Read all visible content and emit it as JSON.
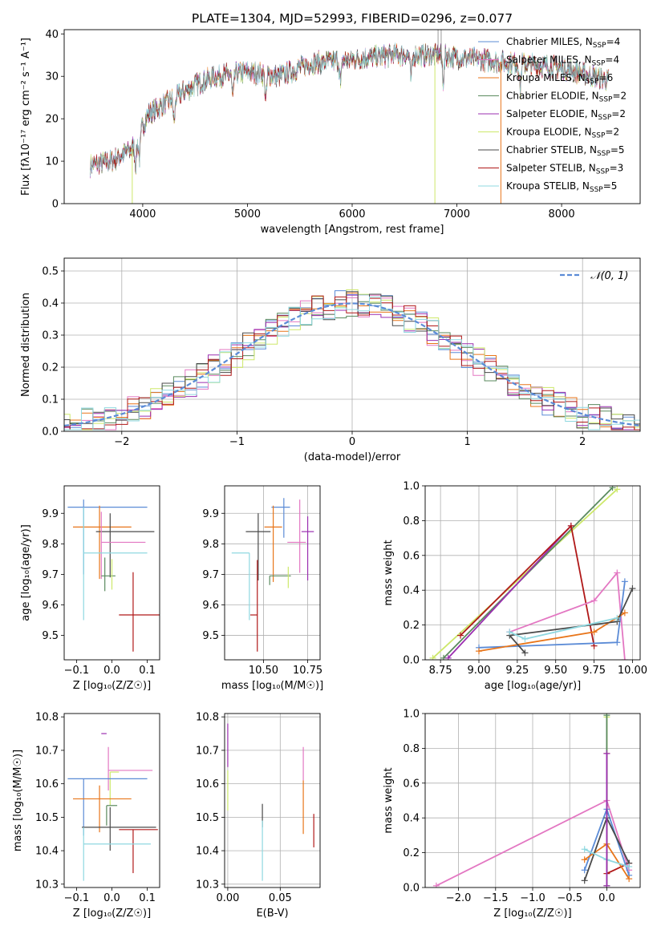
{
  "colors": {
    "chabrier_miles": "#5b8bd6",
    "salpeter_miles": "#e377c2",
    "kroupa_miles": "#e8751a",
    "chabrier_elodie": "#5a8a5e",
    "salpeter_elodie": "#9b2fb0",
    "kroupa_elodie": "#cde86a",
    "chabrier_stelib": "#4a4a4a",
    "salpeter_stelib": "#b01818",
    "kroupa_stelib": "#8fd8e0",
    "normal_curve": "#5b8bd6"
  },
  "chart_data": [
    {
      "id": "spectrum",
      "type": "line",
      "title": "PLATE=1304, MJD=52993, FIBERID=0296, z=0.077",
      "xlabel": "wavelength [Angstrom, rest frame]",
      "ylabel": "Flux [fλ10⁻¹⁷ erg cm⁻² s⁻¹ A⁻¹]",
      "xlim": [
        3250,
        8750
      ],
      "ylim": [
        0,
        41
      ],
      "xticks": [
        4000,
        5000,
        6000,
        7000,
        8000
      ],
      "yticks": [
        0,
        10,
        20,
        30,
        40
      ],
      "grid": false,
      "legend_placement": "top-right",
      "continuum": {
        "x": [
          3500,
          3700,
          3900,
          4050,
          4300,
          4500,
          4700,
          5000,
          5300,
          5600,
          6000,
          6400,
          6800,
          7200,
          7600,
          8000,
          8300,
          8450
        ],
        "y": [
          9,
          10,
          13,
          21,
          25,
          28,
          30,
          31,
          30,
          33,
          34,
          35,
          35,
          34,
          33,
          32,
          30,
          29
        ]
      },
      "absorption_lines": [
        3934,
        3969,
        4300,
        4861,
        5175,
        5890,
        6563,
        6870,
        7605
      ],
      "legend": [
        {
          "label": "Chabrier MILES, N",
          "sub": "SSP",
          "suffix": "=4",
          "color_key": "chabrier_miles"
        },
        {
          "label": "Salpeter MILES, N",
          "sub": "SSP",
          "suffix": "=4",
          "color_key": "salpeter_miles"
        },
        {
          "label": "Kroupa MILES, N",
          "sub": "SSP",
          "suffix": "=6",
          "color_key": "kroupa_miles"
        },
        {
          "label": "Chabrier ELODIE, N",
          "sub": "SSP",
          "suffix": "=2",
          "color_key": "chabrier_elodie"
        },
        {
          "label": "Salpeter ELODIE, N",
          "sub": "SSP",
          "suffix": "=2",
          "color_key": "salpeter_elodie"
        },
        {
          "label": "Kroupa ELODIE, N",
          "sub": "SSP",
          "suffix": "=2",
          "color_key": "kroupa_elodie"
        },
        {
          "label": "Chabrier STELIB, N",
          "sub": "SSP",
          "suffix": "=5",
          "color_key": "chabrier_stelib"
        },
        {
          "label": "Salpeter STELIB, N",
          "sub": "SSP",
          "suffix": "=3",
          "color_key": "salpeter_stelib"
        },
        {
          "label": "Kroupa STELIB, N",
          "sub": "SSP",
          "suffix": "=5",
          "color_key": "kroupa_stelib"
        }
      ],
      "vertical_drops": [
        {
          "x": 3900,
          "color_key": "kroupa_elodie"
        },
        {
          "x": 6790,
          "color_key": "kroupa_elodie"
        },
        {
          "x": 7420,
          "color_key": "kroupa_miles"
        }
      ]
    },
    {
      "id": "residuals",
      "type": "step",
      "xlabel": "(data-model)/error",
      "ylabel": "Normed distribution",
      "xlim": [
        -2.5,
        2.5
      ],
      "ylim": [
        0,
        0.54
      ],
      "xticks": [
        -2,
        -1,
        0,
        1,
        2
      ],
      "yticks": [
        0.0,
        0.1,
        0.2,
        0.3,
        0.4,
        0.5
      ],
      "grid": true,
      "bin_width": 0.1,
      "legend": [
        {
          "label": "𝒩(0, 1)",
          "style": "dashed",
          "color_key": "normal_curve"
        }
      ],
      "legend_placement": "top-right"
    },
    {
      "id": "age_vs_Z",
      "type": "errorbar",
      "xlabel": "Z [log₁₀(Z/Z☉)]",
      "ylabel": "age  [log₁₀(age/yr)]",
      "xlim": [
        -0.135,
        0.135
      ],
      "ylim": [
        9.42,
        9.99
      ],
      "xticks": [
        -0.1,
        0.0,
        0.1
      ],
      "yticks": [
        9.5,
        9.6,
        9.7,
        9.8,
        9.9
      ],
      "grid": false,
      "points": [
        {
          "color_key": "chabrier_miles",
          "x": -0.08,
          "xerr": 0.045,
          "xerr_hi": 0.18,
          "y": 9.92,
          "yerr": [
            0.22,
            0.025
          ]
        },
        {
          "color_key": "kroupa_miles",
          "x": -0.035,
          "xerr_lo": 0.075,
          "xerr_hi": 0.09,
          "y": 9.855,
          "yerr": [
            0.17,
            0.07
          ]
        },
        {
          "color_key": "chabrier_stelib",
          "x": -0.005,
          "xerr_lo": 0.04,
          "xerr_hi": 0.125,
          "y": 9.84,
          "yerr": [
            0.15,
            0.06
          ]
        },
        {
          "color_key": "salpeter_miles",
          "x": -0.03,
          "xerr_lo": 0.0,
          "xerr_hi": 0.125,
          "y": 9.805,
          "yerr": [
            0.12,
            0.1
          ]
        },
        {
          "color_key": "kroupa_stelib",
          "x": -0.08,
          "xerr_lo": 0.0,
          "xerr_hi": 0.18,
          "y": 9.77,
          "yerr": [
            0.22,
            0.15
          ]
        },
        {
          "color_key": "chabrier_elodie",
          "x": -0.02,
          "xerr_lo": 0.01,
          "xerr_hi": 0.03,
          "y": 9.695,
          "yerr": [
            0.05,
            0.06
          ]
        },
        {
          "color_key": "salpeter_stelib",
          "x": 0.06,
          "xerr_lo": 0.04,
          "xerr_hi": 0.075,
          "y": 9.567,
          "yerr": [
            0.12,
            0.14
          ]
        },
        {
          "color_key": "kroupa_elodie",
          "x": 0.0,
          "xerr_lo": 0.0,
          "xerr_hi": 0.0,
          "y": 9.69,
          "yerr": [
            0.04,
            0.06
          ]
        }
      ]
    },
    {
      "id": "age_vs_mass",
      "type": "errorbar",
      "xlabel": "mass [log₁₀(M/M☉)]",
      "xlim": [
        10.28,
        10.82
      ],
      "ylim": [
        9.42,
        9.99
      ],
      "xticks": [
        10.5,
        10.75
      ],
      "yticks": [
        9.5,
        9.6,
        9.7,
        9.8,
        9.9
      ],
      "grid": true,
      "points": [
        {
          "color_key": "chabrier_miles",
          "x": 10.615,
          "xerr_lo": 0.07,
          "xerr_hi": 0.035,
          "y": 9.92,
          "yerr": [
            0.1,
            0.03
          ]
        },
        {
          "color_key": "salpeter_miles",
          "x": 10.705,
          "xerr_lo": 0.07,
          "xerr_hi": 0.035,
          "y": 9.805,
          "yerr": [
            0.1,
            0.14
          ]
        },
        {
          "color_key": "kroupa_miles",
          "x": 10.555,
          "xerr_lo": 0.05,
          "xerr_hi": 0.05,
          "y": 9.855,
          "yerr": [
            0.18,
            0.07
          ]
        },
        {
          "color_key": "chabrier_stelib",
          "x": 10.47,
          "xerr_lo": 0.07,
          "xerr_hi": 0.07,
          "y": 9.84,
          "yerr": [
            0.16,
            0.06
          ]
        },
        {
          "color_key": "salpeter_elodie",
          "x": 10.75,
          "xerr_lo": 0.035,
          "xerr_hi": 0.035,
          "y": 9.84,
          "yerr": [
            0.16,
            0.05
          ]
        },
        {
          "color_key": "kroupa_stelib",
          "x": 10.42,
          "xerr_lo": 0.1,
          "xerr_hi": 0.0,
          "y": 9.77,
          "yerr": [
            0.22,
            0.0
          ]
        },
        {
          "color_key": "chabrier_elodie",
          "x": 10.535,
          "xerr_lo": 0.0,
          "xerr_hi": 0.12,
          "y": 9.695,
          "yerr": [
            0.03,
            0.0
          ]
        },
        {
          "color_key": "kroupa_elodie",
          "x": 10.64,
          "xerr_lo": 0.0,
          "xerr_hi": 0.0,
          "y": 9.695,
          "yerr": [
            0.04,
            0.03
          ]
        },
        {
          "color_key": "salpeter_stelib",
          "x": 10.465,
          "xerr_lo": 0.04,
          "xerr_hi": 0.0,
          "y": 9.567,
          "yerr": [
            0.12,
            0.18
          ]
        }
      ]
    },
    {
      "id": "weight_vs_age",
      "type": "line",
      "xlabel": "age  [log₁₀(age/yr)]",
      "ylabel": "mass weight",
      "xlim": [
        8.65,
        10.05
      ],
      "ylim": [
        0.0,
        1.0
      ],
      "xticks": [
        8.75,
        9.0,
        9.25,
        9.5,
        9.75,
        10.0
      ],
      "yticks": [
        0.0,
        0.2,
        0.4,
        0.6,
        0.8,
        1.0
      ],
      "grid": true,
      "series": [
        {
          "color_key": "kroupa_elodie",
          "x": [
            8.7,
            9.9
          ],
          "y": [
            0.01,
            0.98
          ]
        },
        {
          "color_key": "chabrier_elodie",
          "x": [
            8.77,
            9.87
          ],
          "y": [
            0.01,
            0.99
          ]
        },
        {
          "color_key": "salpeter_elodie",
          "x": [
            8.8,
            9.6
          ],
          "y": [
            0.01,
            0.77
          ]
        },
        {
          "color_key": "salpeter_stelib",
          "x": [
            8.88,
            9.6,
            9.75
          ],
          "y": [
            0.14,
            0.77,
            0.08
          ]
        },
        {
          "color_key": "salpeter_miles",
          "x": [
            9.2,
            9.75,
            9.9,
            9.95
          ],
          "y": [
            0.16,
            0.34,
            0.5,
            0.0
          ]
        },
        {
          "color_key": "chabrier_miles",
          "x": [
            9.0,
            9.9,
            9.95
          ],
          "y": [
            0.07,
            0.1,
            0.45
          ]
        },
        {
          "color_key": "kroupa_miles",
          "x": [
            9.0,
            9.75,
            9.95
          ],
          "y": [
            0.05,
            0.16,
            0.27
          ]
        },
        {
          "color_key": "chabrier_stelib",
          "x": [
            9.3,
            9.2,
            9.9,
            10.0
          ],
          "y": [
            0.04,
            0.14,
            0.22,
            0.41
          ]
        },
        {
          "color_key": "kroupa_stelib",
          "x": [
            9.2,
            9.3,
            9.9
          ],
          "y": [
            0.16,
            0.12,
            0.24
          ]
        }
      ]
    },
    {
      "id": "mass_vs_Z",
      "type": "errorbar",
      "xlabel": "Z [log₁₀(Z/Z☉)]",
      "ylabel": "mass [log₁₀(M/M☉)]",
      "xlim": [
        -0.135,
        0.135
      ],
      "ylim": [
        10.29,
        10.81
      ],
      "xticks": [
        -0.1,
        0.0,
        0.1
      ],
      "yticks": [
        10.3,
        10.4,
        10.5,
        10.6,
        10.7,
        10.8
      ],
      "grid": false,
      "points": [
        {
          "color_key": "salpeter_elodie",
          "x": -0.015,
          "xerr_lo": 0.015,
          "xerr_hi": 0.0,
          "y": 10.75,
          "yerr": [
            0.0,
            0.0
          ]
        },
        {
          "color_key": "salpeter_miles",
          "x": -0.01,
          "xerr_lo": 0.0,
          "xerr_hi": 0.125,
          "y": 10.64,
          "yerr": [
            0.06,
            0.07
          ]
        },
        {
          "color_key": "kroupa_elodie",
          "x": -0.005,
          "xerr_lo": 0.0,
          "xerr_hi": 0.025,
          "y": 10.635,
          "yerr": [
            0.1,
            0.0
          ]
        },
        {
          "color_key": "chabrier_miles",
          "x": -0.08,
          "xerr_lo": 0.045,
          "xerr_hi": 0.18,
          "y": 10.615,
          "yerr": [
            0.17,
            0.0
          ]
        },
        {
          "color_key": "kroupa_miles",
          "x": -0.035,
          "xerr_lo": 0.075,
          "xerr_hi": 0.09,
          "y": 10.555,
          "yerr": [
            0.1,
            0.04
          ]
        },
        {
          "color_key": "chabrier_elodie",
          "x": -0.015,
          "xerr_lo": 0.0,
          "xerr_hi": 0.03,
          "y": 10.535,
          "yerr": [
            0.06,
            0.0
          ]
        },
        {
          "color_key": "chabrier_stelib",
          "x": -0.005,
          "xerr_lo": 0.08,
          "xerr_hi": 0.13,
          "y": 10.47,
          "yerr": [
            0.07,
            0.06
          ]
        },
        {
          "color_key": "salpeter_stelib",
          "x": 0.06,
          "xerr_lo": 0.04,
          "xerr_hi": 0.07,
          "y": 10.463,
          "yerr": [
            0.13,
            0.0
          ]
        },
        {
          "color_key": "kroupa_stelib",
          "x": -0.08,
          "xerr_lo": 0.0,
          "xerr_hi": 0.19,
          "y": 10.42,
          "yerr": [
            0.11,
            0.05
          ]
        }
      ]
    },
    {
      "id": "mass_vs_ebv",
      "type": "errorbar",
      "xlabel": "E(B-V)",
      "xlim": [
        -0.003,
        0.088
      ],
      "ylim": [
        10.29,
        10.81
      ],
      "xticks": [
        0.0,
        0.05
      ],
      "yticks": [
        10.3,
        10.4,
        10.5,
        10.6,
        10.7,
        10.8
      ],
      "grid": true,
      "points": [
        {
          "color_key": "salpeter_elodie",
          "x": 0.0,
          "y": 10.7,
          "yerr": [
            0.05,
            0.08
          ]
        },
        {
          "color_key": "kroupa_elodie",
          "x": 0.0,
          "y": 10.58,
          "yerr": [
            0.06,
            0.06
          ]
        },
        {
          "color_key": "chabrier_stelib",
          "x": 0.033,
          "y": 10.5,
          "yerr": [
            0.03,
            0.04
          ]
        },
        {
          "color_key": "kroupa_stelib",
          "x": 0.033,
          "y": 10.4,
          "yerr": [
            0.09,
            0.09
          ]
        },
        {
          "color_key": "salpeter_miles",
          "x": 0.072,
          "y": 10.66,
          "yerr": [
            0.05,
            0.05
          ]
        },
        {
          "color_key": "kroupa_miles",
          "x": 0.072,
          "y": 10.53,
          "yerr": [
            0.08,
            0.08
          ]
        },
        {
          "color_key": "salpeter_stelib",
          "x": 0.082,
          "y": 10.46,
          "yerr": [
            0.05,
            0.05
          ]
        }
      ]
    },
    {
      "id": "weight_vs_Z",
      "type": "line",
      "xlabel": "Z [log₁₀(Z/Z☉)]",
      "ylabel": "mass weight",
      "xlim": [
        -2.45,
        0.45
      ],
      "ylim": [
        0.0,
        1.0
      ],
      "xticks": [
        -2.0,
        -1.5,
        -1.0,
        -0.5,
        0.0
      ],
      "yticks": [
        0.0,
        0.2,
        0.4,
        0.6,
        0.8,
        1.0
      ],
      "grid": true,
      "series": [
        {
          "color_key": "kroupa_elodie",
          "x": [
            0.0,
            0.0
          ],
          "y": [
            0.01,
            0.98
          ]
        },
        {
          "color_key": "salpeter_stelib",
          "x": [
            0.0,
            0.0,
            0.3
          ],
          "y": [
            0.77,
            0.08,
            0.14
          ]
        },
        {
          "color_key": "salpeter_miles",
          "x": [
            -2.3,
            0.0,
            0.3
          ],
          "y": [
            0.01,
            0.5,
            0.1
          ]
        },
        {
          "color_key": "chabrier_miles",
          "x": [
            -0.3,
            0.0,
            0.3
          ],
          "y": [
            0.1,
            0.45,
            0.07
          ]
        },
        {
          "color_key": "kroupa_miles",
          "x": [
            -0.3,
            0.0,
            0.3
          ],
          "y": [
            0.16,
            0.25,
            0.05
          ]
        },
        {
          "color_key": "chabrier_stelib",
          "x": [
            -0.3,
            0.0,
            0.3
          ],
          "y": [
            0.04,
            0.4,
            0.14
          ]
        },
        {
          "color_key": "kroupa_stelib",
          "x": [
            -0.3,
            0.0,
            0.3
          ],
          "y": [
            0.22,
            0.16,
            0.12
          ]
        },
        {
          "color_key": "chabrier_elodie",
          "x": [
            0.0,
            0.0
          ],
          "y": [
            0.01,
            0.99
          ]
        },
        {
          "color_key": "salpeter_elodie",
          "x": [
            0.0,
            0.0
          ],
          "y": [
            0.01,
            0.77
          ]
        }
      ]
    }
  ]
}
